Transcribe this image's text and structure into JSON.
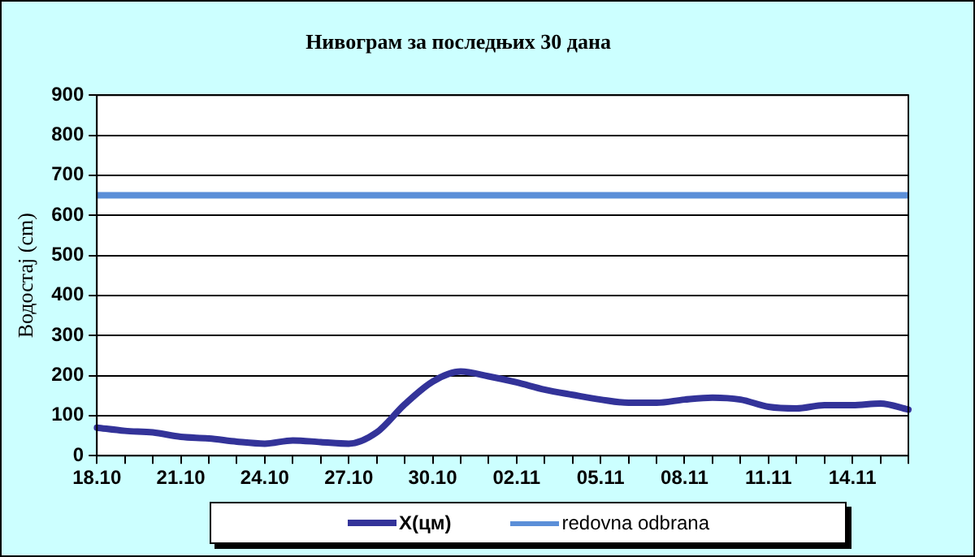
{
  "chart_data": {
    "type": "line",
    "title": "Нивограм за последњих 30 дана",
    "ylabel": "Водостај (cm)",
    "categories": [
      "18.10",
      null,
      null,
      "21.10",
      null,
      null,
      "24.10",
      null,
      null,
      "27.10",
      null,
      null,
      "30.10",
      null,
      null,
      "02.11",
      null,
      null,
      "05.11",
      null,
      null,
      "08.11",
      null,
      null,
      "11.11",
      null,
      null,
      "14.11",
      null,
      null
    ],
    "series": [
      {
        "name": "X(цм)",
        "color": "#333399",
        "values": [
          70,
          62,
          58,
          47,
          43,
          35,
          30,
          38,
          34,
          30,
          58,
          128,
          185,
          210,
          198,
          183,
          165,
          152,
          140,
          132,
          132,
          140,
          145,
          140,
          122,
          118,
          126,
          126,
          130,
          115
        ]
      }
    ],
    "ref_lines": [
      {
        "axis": "y",
        "value": 650,
        "label": "redovna odbrana",
        "color": "#5b8fd8"
      }
    ],
    "ylim": [
      0,
      900
    ],
    "yticks": [
      0,
      100,
      200,
      300,
      400,
      500,
      600,
      700,
      800,
      900
    ],
    "grid": "y",
    "legend": "bottom",
    "marker": "none",
    "line_style": "solid"
  }
}
